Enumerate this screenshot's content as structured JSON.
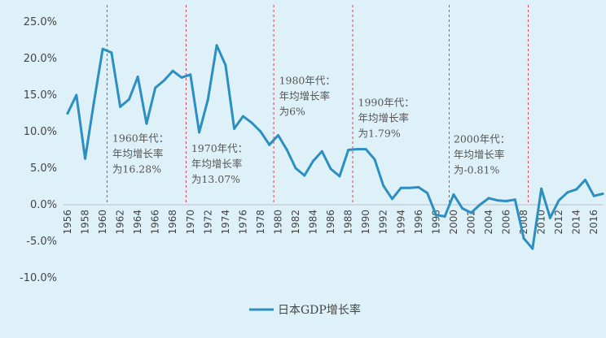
{
  "chart_data": {
    "type": "line",
    "title": "",
    "xlabel": "",
    "ylabel": "",
    "ylim": [
      -10,
      25
    ],
    "yticks": [
      "25.0%",
      "20.0%",
      "15.0%",
      "10.0%",
      "5.0%",
      "0.0%",
      "-5.0%",
      "-10.0%"
    ],
    "ytick_values": [
      25,
      20,
      15,
      10,
      5,
      0,
      -5,
      -10
    ],
    "xlim": [
      1956,
      2017
    ],
    "xticks": [
      "1956",
      "1958",
      "1960",
      "1962",
      "1964",
      "1966",
      "1968",
      "1970",
      "1972",
      "1974",
      "1976",
      "1978",
      "1980",
      "1982",
      "1984",
      "1986",
      "1988",
      "1990",
      "1992",
      "1994",
      "1996",
      "1998",
      "2000",
      "2002",
      "2004",
      "2006",
      "2008",
      "2010",
      "2012",
      "2014",
      "2016"
    ],
    "series": [
      {
        "name": "日本GDP增长率",
        "color": "#2b8fc2",
        "x": [
          1956,
          1957,
          1958,
          1959,
          1960,
          1961,
          1962,
          1963,
          1964,
          1965,
          1966,
          1967,
          1968,
          1969,
          1970,
          1971,
          1972,
          1973,
          1974,
          1975,
          1976,
          1977,
          1978,
          1979,
          1980,
          1981,
          1982,
          1983,
          1984,
          1985,
          1986,
          1987,
          1988,
          1989,
          1990,
          1991,
          1992,
          1993,
          1994,
          1995,
          1996,
          1997,
          1998,
          1999,
          2000,
          2001,
          2002,
          2003,
          2004,
          2005,
          2006,
          2007,
          2008,
          2009,
          2010,
          2011,
          2012,
          2013,
          2014,
          2015,
          2016,
          2017
        ],
        "values": [
          12.5,
          15.0,
          6.3,
          14.0,
          21.3,
          20.8,
          13.4,
          14.4,
          17.5,
          11.1,
          16.0,
          17.0,
          18.3,
          17.4,
          17.8,
          9.9,
          14.4,
          21.8,
          19.1,
          10.4,
          12.1,
          11.2,
          10.0,
          8.2,
          9.5,
          7.5,
          5.0,
          4.0,
          6.0,
          7.3,
          4.9,
          3.9,
          7.5,
          7.6,
          7.6,
          6.2,
          2.6,
          0.8,
          2.3,
          2.3,
          2.4,
          1.6,
          -1.4,
          -1.6,
          1.4,
          -0.5,
          -1.1,
          0.0,
          0.9,
          0.6,
          0.5,
          0.7,
          -4.6,
          -6.0,
          2.2,
          -1.8,
          0.6,
          1.7,
          2.1,
          3.4,
          1.2,
          1.5
        ]
      }
    ],
    "dividers": [
      1960.5,
      1969.5,
      1979.5,
      1988.5,
      1999.5,
      2008.5
    ],
    "annotations": [
      {
        "lines": [
          "1960年代：",
          "年均增长率",
          "为16.28%"
        ],
        "x": 1961.1,
        "y": 8.6
      },
      {
        "lines": [
          "1970年代：",
          "年均增长率",
          "为13.07%"
        ],
        "x": 1970.1,
        "y": 7.2
      },
      {
        "lines": [
          "1980年代：",
          "年均增长率",
          "为6%"
        ],
        "x": 1980.1,
        "y": 16.5
      },
      {
        "lines": [
          "1990年代：",
          "年均增长率",
          "为1.79%"
        ],
        "x": 1989.1,
        "y": 13.5
      },
      {
        "lines": [
          "2000年代：",
          "年均增长率",
          "为-0.81%"
        ],
        "x": 2000.0,
        "y": 8.5
      }
    ],
    "legend": {
      "position": "bottom-center",
      "label": "日本GDP增长率"
    },
    "grid": false
  }
}
